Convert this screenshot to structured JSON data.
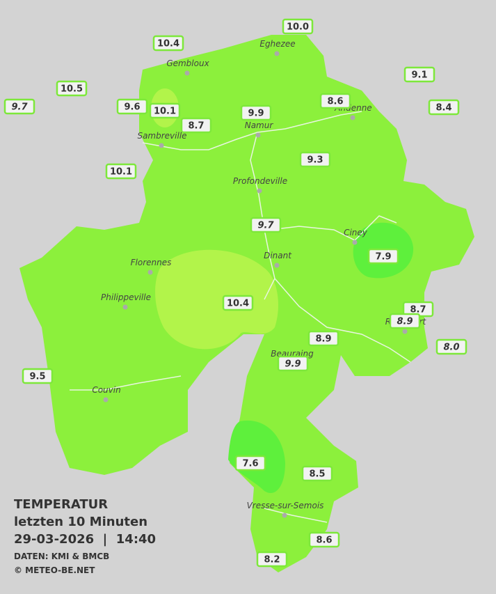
{
  "map": {
    "stations": [
      {
        "label": "10.0"
      },
      {
        "label": "10.4"
      },
      {
        "label": "9.1"
      },
      {
        "label": "10.5"
      },
      {
        "label": "9.7",
        "italic": true
      },
      {
        "label": "9.6"
      },
      {
        "label": "10.1"
      },
      {
        "label": "8.6"
      },
      {
        "label": "8.4"
      },
      {
        "label": "9.9"
      },
      {
        "label": "8.7"
      },
      {
        "label": "9.3"
      },
      {
        "label": "10.1"
      },
      {
        "label": "9.7",
        "italic": true
      },
      {
        "label": "7.9"
      },
      {
        "label": "10.4"
      },
      {
        "label": "8.7"
      },
      {
        "label": "8.9",
        "italic": true
      },
      {
        "label": "8.0",
        "italic": true
      },
      {
        "label": "8.9"
      },
      {
        "label": "9.9",
        "italic": true
      },
      {
        "label": "9.5"
      },
      {
        "label": "7.6"
      },
      {
        "label": "8.5"
      },
      {
        "label": "8.6"
      },
      {
        "label": "8.2"
      }
    ],
    "towns": [
      "Eghezee",
      "Gembloux",
      "Andenne",
      "Namur",
      "Sambreville",
      "Profondeville",
      "Ciney",
      "Florennes",
      "Dinant",
      "Philippeville",
      "Rochefort",
      "Beauraing",
      "Couvin",
      "Vresse-sur-Semois"
    ],
    "legend": {
      "title": "TEMPERATUR",
      "period": "letzten 10 Minuten",
      "datetime": "29-03-2026  |  14:40",
      "source": "DATEN: KMI & BMCB",
      "copyright": "© METEO-BE.NET"
    }
  }
}
